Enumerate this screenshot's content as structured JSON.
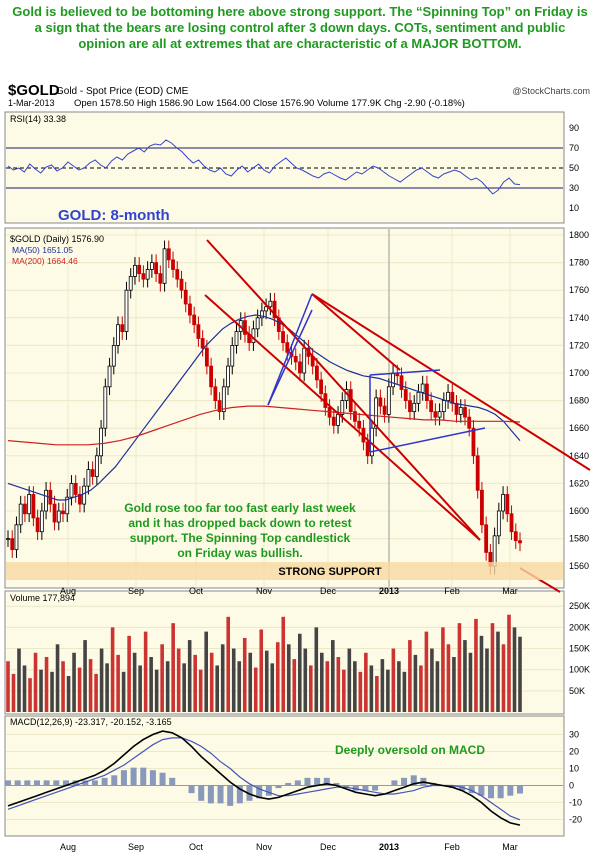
{
  "headline": {
    "text": "Gold is believed to be bottoming here above strong support. The “Spinning Top” on Friday is a sign that the bears are losing control after 3 down days. COTs, sentiment and public opinion are all at extremes that are characteristic of a MAJOR BOTTOM."
  },
  "header": {
    "symbol": "$GOLD",
    "description": "Gold - Spot Price (EOD) CME",
    "source": "@StockCharts.com",
    "date": "1-Mar-2013",
    "ohlc_text": "Open 1578.50  High 1586.90  Low 1564.00  Close 1576.90  Volume 177.9K  Chg -2.90 (-0.18%)"
  },
  "colors": {
    "panel_bg": "#fdfbe6",
    "trend_red": "#cc0000",
    "channel_blue": "#3333cc",
    "ma50": "#1f2f99",
    "ma200": "#cc2222",
    "up_candle": "#000000",
    "down_candle": "#cc0000",
    "annotation_green": "#1f9a1f",
    "support_band": "#f7d9a3"
  },
  "chart_data": [
    {
      "type": "line",
      "title": "RSI(14) 33.38",
      "ylim": [
        0,
        100
      ],
      "y_ticks": [
        10,
        30,
        50,
        70,
        90
      ],
      "reference_lines": [
        30,
        50,
        70
      ],
      "values": [
        52,
        48,
        50,
        46,
        54,
        49,
        45,
        51,
        53,
        47,
        50,
        56,
        52,
        48,
        50,
        55,
        58,
        53,
        50,
        57,
        61,
        58,
        64,
        67,
        70,
        66,
        72,
        74,
        73,
        78,
        75,
        70,
        66,
        60,
        55,
        58,
        52,
        48,
        46,
        50,
        44,
        42,
        48,
        52,
        46,
        50,
        54,
        48,
        45,
        52,
        56,
        60,
        55,
        50,
        48,
        45,
        42,
        40,
        44,
        46,
        43,
        40,
        38,
        42,
        46,
        44,
        48,
        52,
        50,
        46,
        42,
        39,
        36,
        40,
        44,
        48,
        50,
        46,
        42,
        40,
        44,
        46,
        48,
        46,
        42,
        38,
        40,
        36,
        30,
        24,
        28,
        36,
        40,
        34,
        33.38
      ]
    },
    {
      "type": "candlestick",
      "title": "GOLD: 8-month",
      "subtitle": "$GOLD (Daily) 1576.90",
      "legend": [
        "MA(50) 1651.05",
        "MA(200) 1664.46"
      ],
      "ylim": [
        1550,
        1800
      ],
      "y_ticks": [
        1560,
        1580,
        1600,
        1620,
        1640,
        1660,
        1680,
        1700,
        1720,
        1740,
        1760,
        1780,
        1800
      ],
      "x_labels": [
        "Aug",
        "Sep",
        "Oct",
        "Nov",
        "Dec",
        "2013",
        "Feb",
        "Mar"
      ],
      "closes": [
        1580,
        1572,
        1590,
        1605,
        1598,
        1612,
        1595,
        1585,
        1600,
        1615,
        1605,
        1592,
        1600,
        1598,
        1610,
        1620,
        1612,
        1605,
        1618,
        1630,
        1625,
        1640,
        1660,
        1690,
        1705,
        1720,
        1735,
        1730,
        1760,
        1770,
        1778,
        1772,
        1768,
        1775,
        1780,
        1772,
        1765,
        1790,
        1782,
        1775,
        1768,
        1760,
        1750,
        1742,
        1735,
        1725,
        1718,
        1705,
        1690,
        1680,
        1672,
        1690,
        1705,
        1720,
        1730,
        1738,
        1728,
        1722,
        1732,
        1740,
        1745,
        1748,
        1752,
        1740,
        1730,
        1722,
        1715,
        1712,
        1708,
        1700,
        1718,
        1712,
        1705,
        1695,
        1685,
        1675,
        1668,
        1662,
        1670,
        1680,
        1688,
        1672,
        1665,
        1660,
        1650,
        1640,
        1660,
        1682,
        1676,
        1670,
        1690,
        1700,
        1698,
        1688,
        1680,
        1672,
        1678,
        1686,
        1692,
        1680,
        1672,
        1668,
        1672,
        1680,
        1686,
        1678,
        1670,
        1675,
        1668,
        1660,
        1640,
        1615,
        1590,
        1570,
        1560,
        1582,
        1600,
        1612,
        1598,
        1585,
        1578.5,
        1576.9
      ],
      "ma50": [
        1620,
        1618,
        1616,
        1614,
        1612,
        1610,
        1608,
        1608,
        1610,
        1612,
        1615,
        1620,
        1626,
        1632,
        1640,
        1648,
        1656,
        1664,
        1672,
        1680,
        1688,
        1696,
        1704,
        1712,
        1720,
        1726,
        1732,
        1736,
        1739,
        1741,
        1742,
        1741,
        1739,
        1736,
        1732,
        1727,
        1722,
        1716,
        1712,
        1708,
        1705,
        1702,
        1700,
        1698,
        1697,
        1696,
        1694,
        1692,
        1690,
        1688,
        1686,
        1684,
        1682,
        1680,
        1678,
        1677,
        1676,
        1675,
        1673,
        1670,
        1665,
        1658,
        1651.05
      ],
      "ma200": [
        1651,
        1650,
        1649,
        1648,
        1648,
        1648,
        1649,
        1651,
        1654,
        1658,
        1662,
        1666,
        1670,
        1673,
        1675,
        1676,
        1676,
        1675,
        1674,
        1673,
        1672,
        1671,
        1670,
        1669,
        1668,
        1667,
        1666,
        1666,
        1665,
        1665,
        1665,
        1665,
        1664.46
      ],
      "support_label": "STRONG SUPPORT",
      "annotation": "Gold rose too far too fast early last week and it has dropped back down to retest support. The Spinning Top candlestick on Friday was bullish."
    },
    {
      "type": "bar",
      "title": "Volume 177,894",
      "ylim": [
        0,
        260000
      ],
      "y_ticks": [
        "50K",
        "100K",
        "150K",
        "200K",
        "250K"
      ],
      "values": [
        120000,
        90000,
        150000,
        110000,
        80000,
        140000,
        100000,
        130000,
        95000,
        160000,
        120000,
        85000,
        140000,
        105000,
        170000,
        125000,
        90000,
        150000,
        115000,
        200000,
        135000,
        95000,
        180000,
        140000,
        110000,
        190000,
        130000,
        100000,
        160000,
        120000,
        210000,
        150000,
        115000,
        170000,
        135000,
        100000,
        190000,
        140000,
        110000,
        160000,
        225000,
        150000,
        120000,
        175000,
        140000,
        105000,
        195000,
        145000,
        115000,
        165000,
        225000,
        160000,
        125000,
        185000,
        150000,
        110000,
        200000,
        140000,
        120000,
        170000,
        130000,
        100000,
        150000,
        120000,
        95000,
        140000,
        110000,
        85000,
        125000,
        100000,
        150000,
        120000,
        95000,
        170000,
        135000,
        110000,
        190000,
        150000,
        120000,
        200000,
        160000,
        130000,
        210000,
        170000,
        140000,
        220000,
        180000,
        150000,
        210000,
        190000,
        160000,
        230000,
        200000,
        177894
      ]
    },
    {
      "type": "line",
      "title": "MACD(12,26,9) -23.317, -20.152, -3.165",
      "ylim": [
        -25,
        35
      ],
      "y_ticks": [
        -20,
        -10,
        0,
        10,
        20,
        30
      ],
      "annotation": "Deeply oversold on MACD",
      "macd": [
        -12,
        -10,
        -8,
        -6,
        -4,
        -2,
        0,
        2,
        4,
        6,
        9,
        13,
        18,
        23,
        27,
        30,
        32,
        31,
        28,
        23,
        17,
        12,
        7,
        2,
        -2,
        -5,
        -7,
        -8,
        -7,
        -5,
        -3,
        -1,
        0,
        1,
        0,
        -2,
        -4,
        -5,
        -6,
        -5,
        -3,
        -1,
        1,
        2,
        1,
        0,
        -1,
        -3,
        -6,
        -10,
        -15,
        -19,
        -22,
        -23.317
      ],
      "signal": [
        -14,
        -12,
        -10,
        -8,
        -6,
        -4,
        -2,
        0,
        2,
        4,
        6,
        9,
        12,
        16,
        20,
        24,
        27,
        28,
        28,
        26,
        23,
        19,
        14,
        10,
        5,
        1,
        -2,
        -4,
        -6,
        -6,
        -5,
        -4,
        -3,
        -2,
        -1,
        -1,
        -2,
        -3,
        -4,
        -5,
        -5,
        -4,
        -3,
        -1,
        0,
        0,
        0,
        -1,
        -3,
        -6,
        -10,
        -14,
        -18,
        -20.152
      ]
    }
  ],
  "annotations": {
    "channel_tag": "GOLD: 8-month"
  }
}
